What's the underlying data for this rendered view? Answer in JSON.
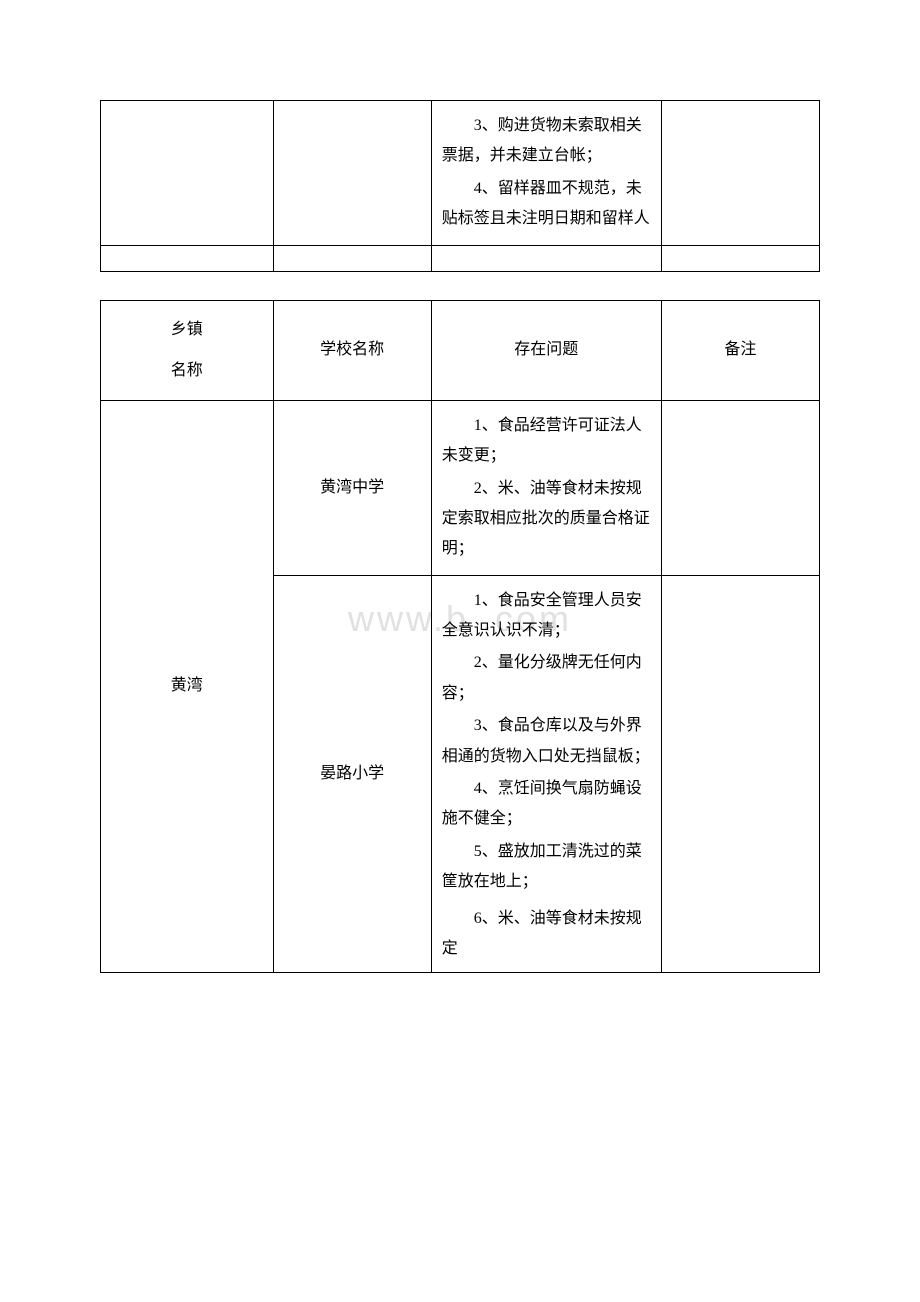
{
  "watermark": "www.b    .com",
  "table1": {
    "issues": {
      "item3": "3、购进货物未索取相关票据，并未建立台帐；",
      "item4": "4、留样器皿不规范，未贴标签且未注明日期和留样人"
    }
  },
  "table2": {
    "headers": {
      "town_line1": "乡镇",
      "town_line2": "名称",
      "school": "学校名称",
      "issue": "存在问题",
      "note": "备注"
    },
    "town": "黄湾",
    "row1": {
      "school": "黄湾中学",
      "issues": {
        "item1": "1、食品经营许可证法人未变更；",
        "item2": "2、米、油等食材未按规定索取相应批次的质量合格证明；"
      }
    },
    "row2": {
      "school": "晏路小学",
      "issues": {
        "item1": "1、食品安全管理人员安全意识认识不清；",
        "item2": "2、量化分级牌无任何内容；",
        "item3": "3、食品仓库以及与外界相通的货物入口处无挡鼠板；",
        "item4": "4、烹饪间换气扇防蝇设施不健全；",
        "item5": "5、盛放加工清洗过的菜筐放在地上；",
        "item6": "6、米、油等食材未按规定"
      }
    }
  }
}
